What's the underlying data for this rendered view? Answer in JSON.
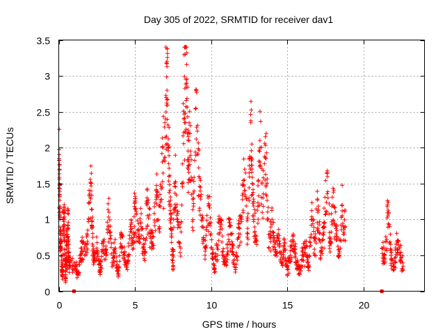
{
  "chart_data": {
    "type": "scatter",
    "title": "Day 305 of 2022, SRMTID for receiver dav1",
    "xlabel": "GPS time / hours",
    "ylabel": "SRMTID / TECUs",
    "xlim": [
      0,
      24
    ],
    "ylim": [
      0,
      3.5
    ],
    "xticks": [
      0,
      5,
      10,
      15,
      20
    ],
    "xtick_labels": [
      "0",
      "5",
      "10",
      "15",
      "20"
    ],
    "yticks": [
      0,
      0.5,
      1,
      1.5,
      2,
      2.5,
      3,
      3.5
    ],
    "ytick_labels": [
      "0",
      "0.5",
      "1",
      "1.5",
      "2",
      "2.5",
      "3",
      "3.5"
    ],
    "grid": true,
    "marker": "+",
    "color": "#ff0000",
    "gaps": [
      [
        19.0,
        21.0
      ]
    ],
    "zero_markers_x": [
      1.0,
      21.2
    ],
    "series": [
      {
        "name": "dav1",
        "x": [
          0.02,
          0.05,
          0.08,
          0.1,
          0.15,
          0.2,
          0.25,
          0.3,
          0.35,
          0.4,
          0.45,
          0.5,
          0.55,
          0.6,
          0.65,
          0.7,
          1.1,
          1.3,
          1.5,
          1.7,
          1.9,
          2.1,
          2.2,
          2.3,
          2.5,
          2.7,
          2.9,
          3.1,
          3.3,
          3.5,
          3.7,
          3.9,
          4.1,
          4.3,
          4.5,
          4.7,
          4.9,
          5.0,
          5.2,
          5.4,
          5.6,
          5.8,
          6.0,
          6.2,
          6.4,
          6.6,
          6.8,
          7.0,
          7.1,
          7.2,
          7.3,
          7.4,
          7.5,
          7.6,
          7.8,
          8.0,
          8.2,
          8.3,
          8.4,
          8.5,
          8.6,
          8.8,
          9.0,
          9.2,
          9.4,
          9.6,
          9.8,
          10.0,
          10.2,
          10.4,
          10.6,
          10.8,
          11.0,
          11.2,
          11.4,
          11.6,
          11.8,
          12.0,
          12.2,
          12.4,
          12.6,
          12.7,
          12.8,
          13.0,
          13.2,
          13.4,
          13.6,
          13.8,
          14.0,
          14.2,
          14.4,
          14.6,
          14.8,
          15.0,
          15.2,
          15.4,
          15.6,
          15.8,
          16.0,
          16.2,
          16.4,
          16.6,
          16.8,
          17.0,
          17.2,
          17.4,
          17.6,
          17.8,
          18.0,
          18.2,
          18.4,
          18.6,
          18.8,
          21.2,
          21.4,
          21.6,
          21.8,
          22.0,
          22.2,
          22.4,
          22.6
        ],
        "y": [
          1.85,
          1.5,
          1.0,
          0.6,
          0.8,
          0.3,
          0.2,
          0.9,
          1.1,
          0.5,
          0.15,
          0.7,
          0.4,
          1.15,
          0.6,
          0.35,
          0.35,
          0.25,
          0.6,
          0.5,
          0.85,
          1.5,
          0.9,
          0.4,
          0.6,
          0.3,
          0.7,
          0.5,
          1.1,
          0.4,
          0.6,
          0.2,
          0.8,
          0.5,
          0.3,
          0.9,
          0.6,
          1.15,
          0.7,
          0.9,
          0.5,
          1.2,
          0.8,
          0.6,
          1.4,
          0.9,
          1.8,
          2.4,
          3.13,
          2.0,
          1.2,
          0.8,
          0.3,
          1.5,
          1.0,
          0.6,
          2.4,
          3.3,
          2.9,
          1.7,
          2.2,
          1.0,
          2.55,
          1.6,
          0.9,
          0.5,
          1.3,
          0.8,
          0.3,
          0.6,
          1.0,
          0.5,
          0.4,
          0.9,
          0.6,
          0.3,
          0.8,
          1.0,
          1.7,
          0.8,
          2.35,
          1.5,
          1.0,
          0.7,
          2.1,
          1.3,
          1.85,
          0.6,
          1.0,
          0.5,
          0.8,
          0.4,
          0.6,
          0.3,
          0.5,
          0.7,
          0.4,
          0.25,
          0.5,
          0.6,
          0.35,
          1.0,
          0.7,
          1.1,
          0.5,
          0.9,
          1.65,
          0.7,
          1.2,
          0.8,
          0.5,
          1.2,
          0.9,
          0.6,
          0.4,
          1.05,
          0.5,
          0.3,
          0.7,
          0.5,
          0.35
        ]
      }
    ]
  }
}
